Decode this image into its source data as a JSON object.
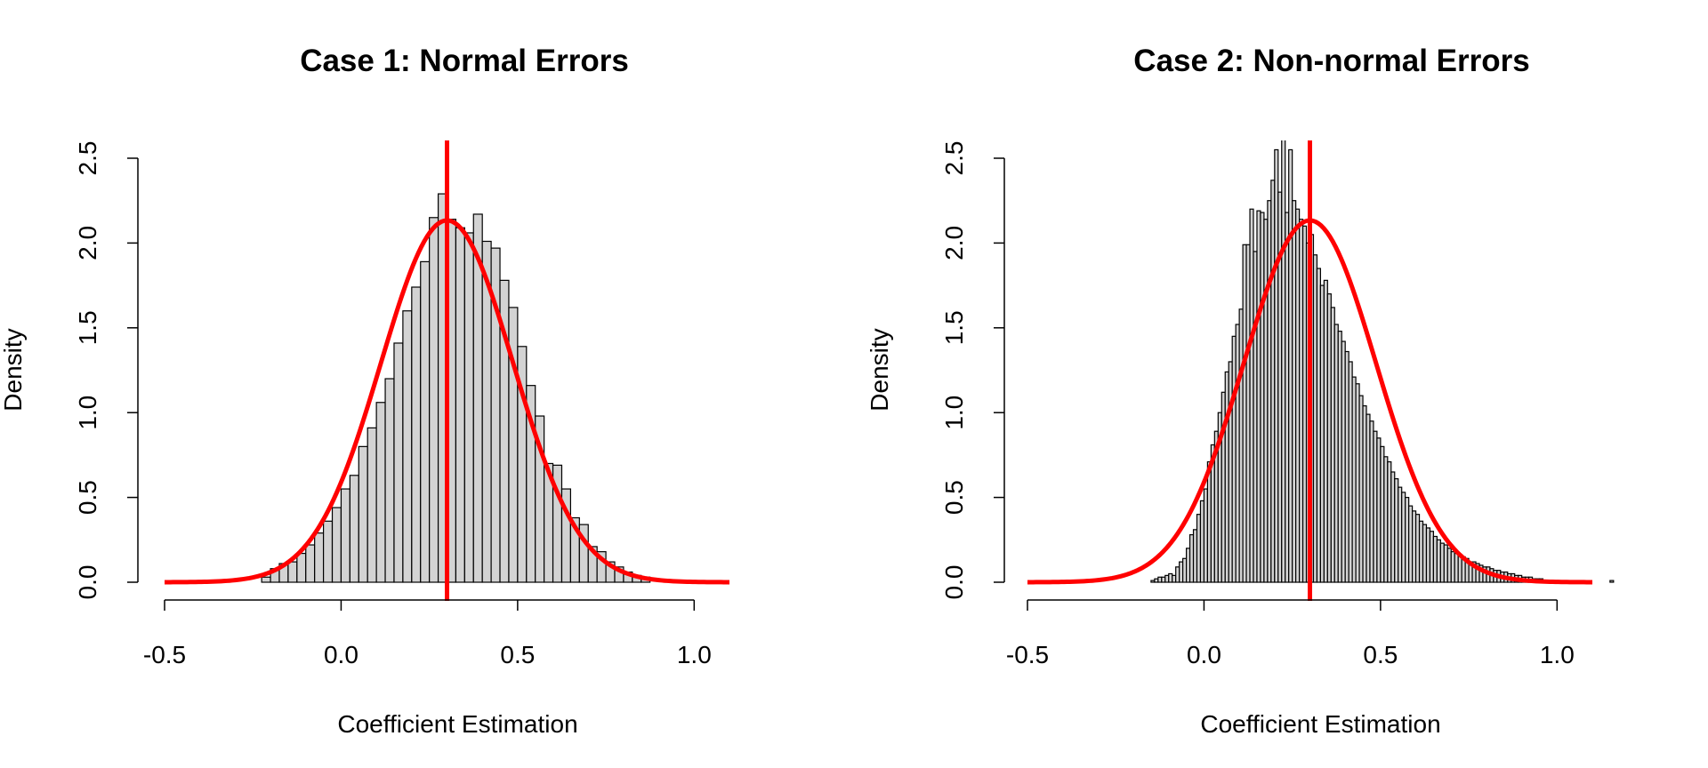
{
  "chart_data": [
    {
      "type": "histogram",
      "title": "Case 1: Normal Errors",
      "xlabel": "Coefficient Estimation",
      "ylabel": "Density",
      "xlim": [
        -0.5,
        1.1
      ],
      "ylim": [
        0,
        2.5
      ],
      "x_ticks": [
        "-0.5",
        "0.0",
        "0.5",
        "1.0"
      ],
      "y_ticks": [
        "0.0",
        "0.5",
        "1.0",
        "1.5",
        "2.0",
        "2.5"
      ],
      "bar_fill": "#d3d3d3",
      "bar_edge": "#000000",
      "histogram_bin_width": 0.025,
      "histogram": [
        {
          "x": -0.225,
          "y": 0.03
        },
        {
          "x": -0.2,
          "y": 0.08
        },
        {
          "x": -0.175,
          "y": 0.11
        },
        {
          "x": -0.15,
          "y": 0.12
        },
        {
          "x": -0.125,
          "y": 0.17
        },
        {
          "x": -0.1,
          "y": 0.22
        },
        {
          "x": -0.075,
          "y": 0.29
        },
        {
          "x": -0.05,
          "y": 0.36
        },
        {
          "x": -0.025,
          "y": 0.44
        },
        {
          "x": 0.0,
          "y": 0.55
        },
        {
          "x": 0.025,
          "y": 0.63
        },
        {
          "x": 0.05,
          "y": 0.8
        },
        {
          "x": 0.075,
          "y": 0.91
        },
        {
          "x": 0.1,
          "y": 1.06
        },
        {
          "x": 0.125,
          "y": 1.2
        },
        {
          "x": 0.15,
          "y": 1.41
        },
        {
          "x": 0.175,
          "y": 1.6
        },
        {
          "x": 0.2,
          "y": 1.74
        },
        {
          "x": 0.225,
          "y": 1.89
        },
        {
          "x": 0.25,
          "y": 2.15
        },
        {
          "x": 0.275,
          "y": 2.29
        },
        {
          "x": 0.3,
          "y": 2.14
        },
        {
          "x": 0.325,
          "y": 2.09
        },
        {
          "x": 0.35,
          "y": 2.06
        },
        {
          "x": 0.375,
          "y": 2.17
        },
        {
          "x": 0.4,
          "y": 2.01
        },
        {
          "x": 0.425,
          "y": 1.97
        },
        {
          "x": 0.45,
          "y": 1.78
        },
        {
          "x": 0.475,
          "y": 1.62
        },
        {
          "x": 0.5,
          "y": 1.39
        },
        {
          "x": 0.525,
          "y": 1.16
        },
        {
          "x": 0.55,
          "y": 0.98
        },
        {
          "x": 0.575,
          "y": 0.7
        },
        {
          "x": 0.6,
          "y": 0.69
        },
        {
          "x": 0.625,
          "y": 0.55
        },
        {
          "x": 0.65,
          "y": 0.38
        },
        {
          "x": 0.675,
          "y": 0.34
        },
        {
          "x": 0.7,
          "y": 0.21
        },
        {
          "x": 0.725,
          "y": 0.18
        },
        {
          "x": 0.75,
          "y": 0.12
        },
        {
          "x": 0.775,
          "y": 0.09
        },
        {
          "x": 0.8,
          "y": 0.06
        },
        {
          "x": 0.825,
          "y": 0.04
        },
        {
          "x": 0.85,
          "y": 0.03
        }
      ],
      "density_curve": {
        "color": "#ff0000",
        "distribution": "normal",
        "mean": 0.3,
        "sd": 0.187,
        "x_range": [
          -0.5,
          1.1
        ]
      },
      "vline": {
        "x": 0.3,
        "color": "#ff0000"
      }
    },
    {
      "type": "histogram",
      "title": "Case 2: Non-normal Errors",
      "xlabel": "Coefficient Estimation",
      "ylabel": "Density",
      "xlim": [
        -0.5,
        1.1
      ],
      "ylim": [
        0,
        2.5
      ],
      "x_ticks": [
        "-0.5",
        "0.0",
        "0.5",
        "1.0"
      ],
      "y_ticks": [
        "0.0",
        "0.5",
        "1.0",
        "1.5",
        "2.0",
        "2.5"
      ],
      "bar_fill": "#d3d3d3",
      "bar_edge": "#000000",
      "histogram_bin_width": 0.01,
      "histogram": [
        {
          "x": -0.15,
          "y": 0.01
        },
        {
          "x": -0.14,
          "y": 0.02
        },
        {
          "x": -0.13,
          "y": 0.03
        },
        {
          "x": -0.12,
          "y": 0.03
        },
        {
          "x": -0.11,
          "y": 0.04
        },
        {
          "x": -0.1,
          "y": 0.05
        },
        {
          "x": -0.09,
          "y": 0.04
        },
        {
          "x": -0.08,
          "y": 0.09
        },
        {
          "x": -0.07,
          "y": 0.12
        },
        {
          "x": -0.06,
          "y": 0.14
        },
        {
          "x": -0.05,
          "y": 0.2
        },
        {
          "x": -0.04,
          "y": 0.28
        },
        {
          "x": -0.03,
          "y": 0.31
        },
        {
          "x": -0.02,
          "y": 0.4
        },
        {
          "x": -0.01,
          "y": 0.48
        },
        {
          "x": 0.0,
          "y": 0.55
        },
        {
          "x": 0.01,
          "y": 0.71
        },
        {
          "x": 0.02,
          "y": 0.81
        },
        {
          "x": 0.03,
          "y": 0.89
        },
        {
          "x": 0.04,
          "y": 1.0
        },
        {
          "x": 0.05,
          "y": 1.12
        },
        {
          "x": 0.06,
          "y": 1.24
        },
        {
          "x": 0.07,
          "y": 1.3
        },
        {
          "x": 0.08,
          "y": 1.45
        },
        {
          "x": 0.09,
          "y": 1.52
        },
        {
          "x": 0.1,
          "y": 1.61
        },
        {
          "x": 0.11,
          "y": 1.99
        },
        {
          "x": 0.12,
          "y": 1.99
        },
        {
          "x": 0.13,
          "y": 2.2
        },
        {
          "x": 0.14,
          "y": 1.95
        },
        {
          "x": 0.15,
          "y": 2.19
        },
        {
          "x": 0.16,
          "y": 2.18
        },
        {
          "x": 0.17,
          "y": 2.14
        },
        {
          "x": 0.18,
          "y": 2.25
        },
        {
          "x": 0.19,
          "y": 2.37
        },
        {
          "x": 0.2,
          "y": 2.55
        },
        {
          "x": 0.21,
          "y": 2.3
        },
        {
          "x": 0.22,
          "y": 2.62
        },
        {
          "x": 0.23,
          "y": 2.18
        },
        {
          "x": 0.24,
          "y": 2.55
        },
        {
          "x": 0.25,
          "y": 2.25
        },
        {
          "x": 0.26,
          "y": 2.2
        },
        {
          "x": 0.27,
          "y": 2.14
        },
        {
          "x": 0.28,
          "y": 2.1
        },
        {
          "x": 0.29,
          "y": 2.0
        },
        {
          "x": 0.3,
          "y": 2.05
        },
        {
          "x": 0.31,
          "y": 1.93
        },
        {
          "x": 0.32,
          "y": 1.85
        },
        {
          "x": 0.33,
          "y": 1.75
        },
        {
          "x": 0.34,
          "y": 1.78
        },
        {
          "x": 0.35,
          "y": 1.7
        },
        {
          "x": 0.36,
          "y": 1.62
        },
        {
          "x": 0.37,
          "y": 1.52
        },
        {
          "x": 0.38,
          "y": 1.48
        },
        {
          "x": 0.39,
          "y": 1.42
        },
        {
          "x": 0.4,
          "y": 1.36
        },
        {
          "x": 0.41,
          "y": 1.3
        },
        {
          "x": 0.42,
          "y": 1.21
        },
        {
          "x": 0.43,
          "y": 1.17
        },
        {
          "x": 0.44,
          "y": 1.1
        },
        {
          "x": 0.45,
          "y": 1.04
        },
        {
          "x": 0.46,
          "y": 0.99
        },
        {
          "x": 0.47,
          "y": 0.95
        },
        {
          "x": 0.48,
          "y": 0.89
        },
        {
          "x": 0.49,
          "y": 0.85
        },
        {
          "x": 0.5,
          "y": 0.8
        },
        {
          "x": 0.51,
          "y": 0.74
        },
        {
          "x": 0.52,
          "y": 0.71
        },
        {
          "x": 0.53,
          "y": 0.65
        },
        {
          "x": 0.54,
          "y": 0.61
        },
        {
          "x": 0.55,
          "y": 0.56
        },
        {
          "x": 0.56,
          "y": 0.53
        },
        {
          "x": 0.57,
          "y": 0.5
        },
        {
          "x": 0.58,
          "y": 0.45
        },
        {
          "x": 0.59,
          "y": 0.42
        },
        {
          "x": 0.6,
          "y": 0.4
        },
        {
          "x": 0.61,
          "y": 0.36
        },
        {
          "x": 0.62,
          "y": 0.34
        },
        {
          "x": 0.63,
          "y": 0.32
        },
        {
          "x": 0.64,
          "y": 0.3
        },
        {
          "x": 0.65,
          "y": 0.27
        },
        {
          "x": 0.66,
          "y": 0.25
        },
        {
          "x": 0.67,
          "y": 0.23
        },
        {
          "x": 0.68,
          "y": 0.22
        },
        {
          "x": 0.69,
          "y": 0.2
        },
        {
          "x": 0.7,
          "y": 0.18
        },
        {
          "x": 0.71,
          "y": 0.17
        },
        {
          "x": 0.72,
          "y": 0.16
        },
        {
          "x": 0.73,
          "y": 0.15
        },
        {
          "x": 0.74,
          "y": 0.14
        },
        {
          "x": 0.75,
          "y": 0.12
        },
        {
          "x": 0.76,
          "y": 0.12
        },
        {
          "x": 0.77,
          "y": 0.11
        },
        {
          "x": 0.78,
          "y": 0.1
        },
        {
          "x": 0.79,
          "y": 0.09
        },
        {
          "x": 0.8,
          "y": 0.09
        },
        {
          "x": 0.81,
          "y": 0.08
        },
        {
          "x": 0.82,
          "y": 0.07
        },
        {
          "x": 0.83,
          "y": 0.07
        },
        {
          "x": 0.84,
          "y": 0.06
        },
        {
          "x": 0.85,
          "y": 0.06
        },
        {
          "x": 0.86,
          "y": 0.05
        },
        {
          "x": 0.87,
          "y": 0.05
        },
        {
          "x": 0.88,
          "y": 0.04
        },
        {
          "x": 0.89,
          "y": 0.04
        },
        {
          "x": 0.9,
          "y": 0.03
        },
        {
          "x": 0.91,
          "y": 0.03
        },
        {
          "x": 0.92,
          "y": 0.03
        },
        {
          "x": 0.93,
          "y": 0.02
        },
        {
          "x": 0.94,
          "y": 0.02
        },
        {
          "x": 0.95,
          "y": 0.02
        },
        {
          "x": 0.96,
          "y": 0.01
        },
        {
          "x": 0.97,
          "y": 0.01
        },
        {
          "x": 0.98,
          "y": 0.01
        },
        {
          "x": 0.99,
          "y": 0.01
        },
        {
          "x": 1.0,
          "y": 0.01
        },
        {
          "x": 1.15,
          "y": 0.01
        }
      ],
      "density_curve": {
        "color": "#ff0000",
        "distribution": "normal",
        "mean": 0.3,
        "sd": 0.187,
        "x_range": [
          -0.5,
          1.1
        ]
      },
      "vline": {
        "x": 0.3,
        "color": "#ff0000"
      }
    }
  ]
}
